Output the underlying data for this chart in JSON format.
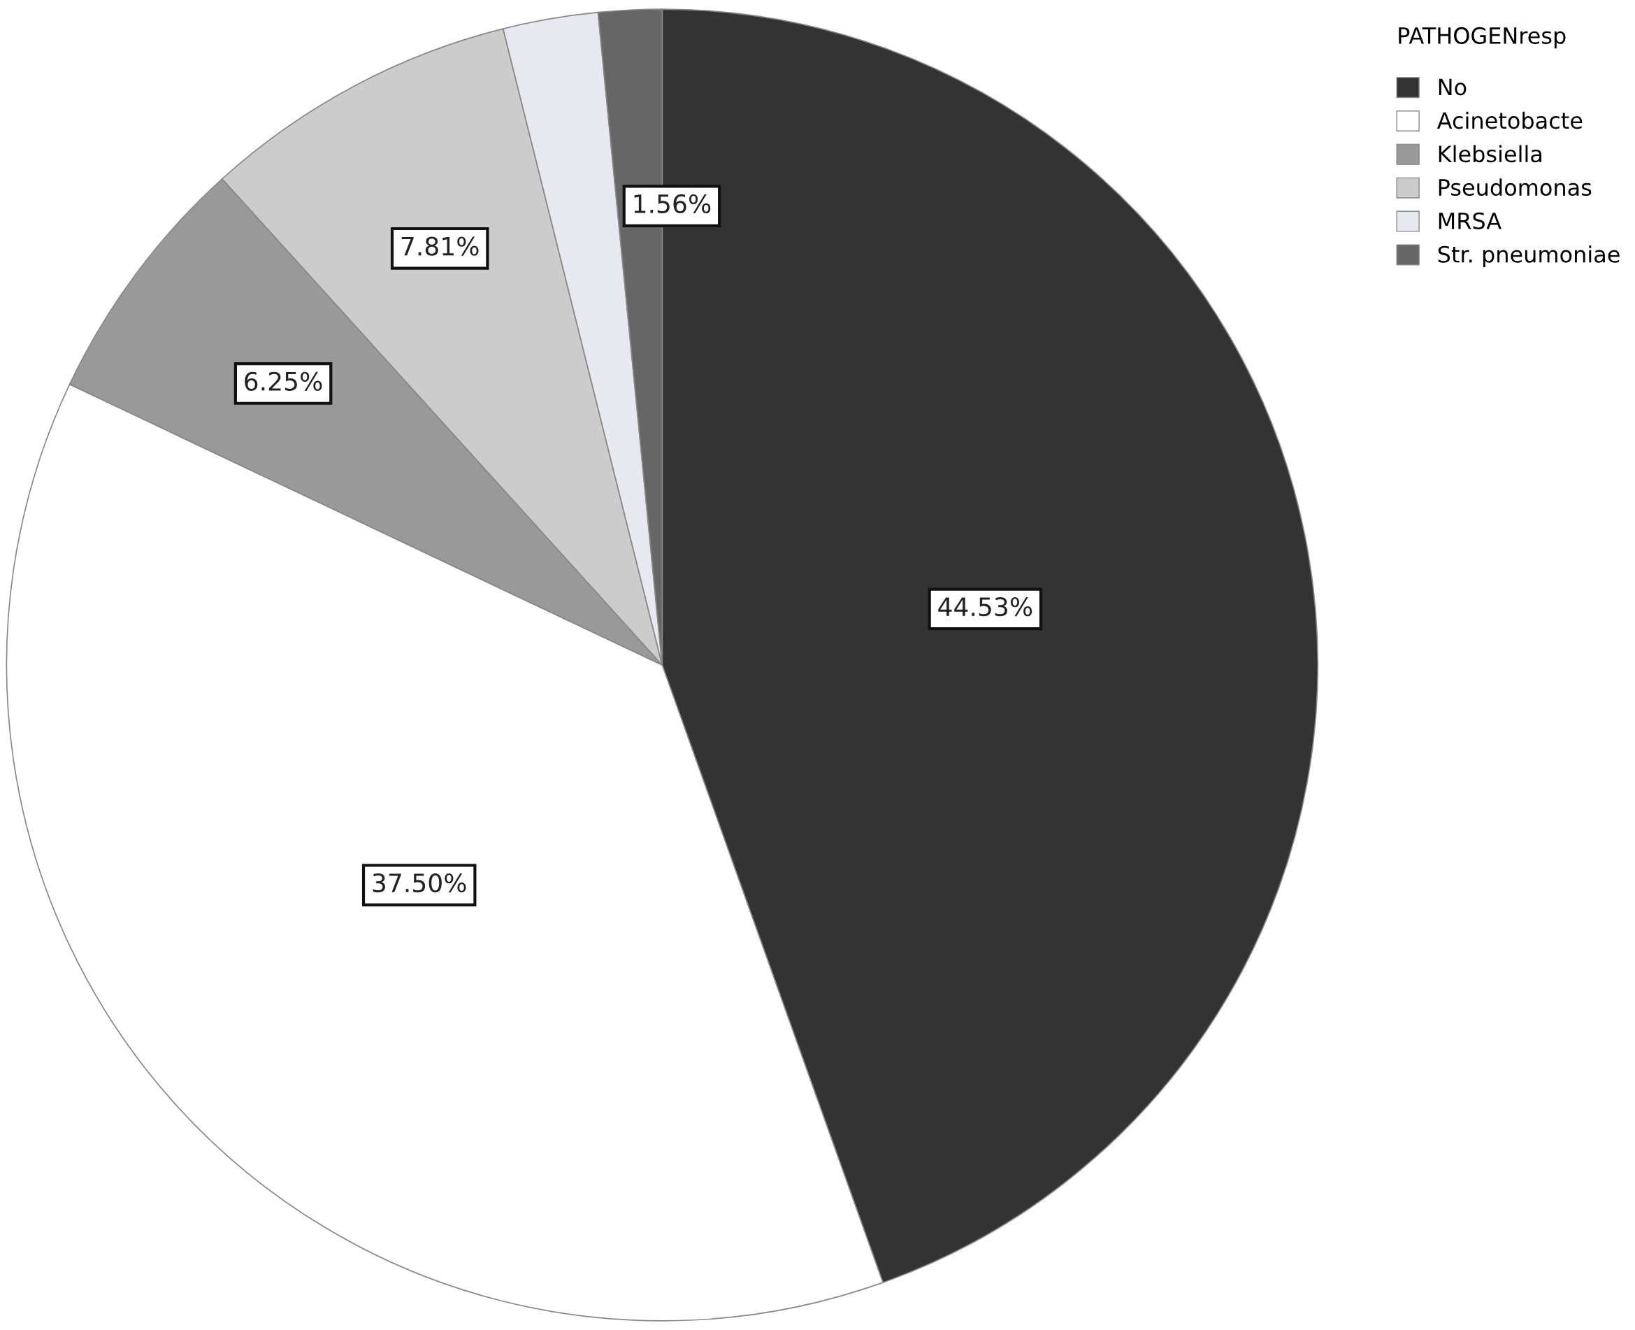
{
  "chart_data": {
    "type": "pie",
    "legend_title": "PATHOGENresp",
    "legend": "top right",
    "categories": [
      "No",
      "Acinetobacte",
      "Klebsiella",
      "Pseudomonas",
      "MRSA",
      "Str. pneumoniae"
    ],
    "values": [
      44.53,
      37.5,
      6.25,
      7.81,
      2.34,
      1.56
    ],
    "colors": [
      "#333333",
      "#ffffff",
      "#999999",
      "#cccccc",
      "#e8e8f0",
      "#666666"
    ],
    "value_labels": [
      "44.53%",
      "37.50%",
      "6.25%",
      "7.81%",
      null,
      "1.56%"
    ]
  }
}
